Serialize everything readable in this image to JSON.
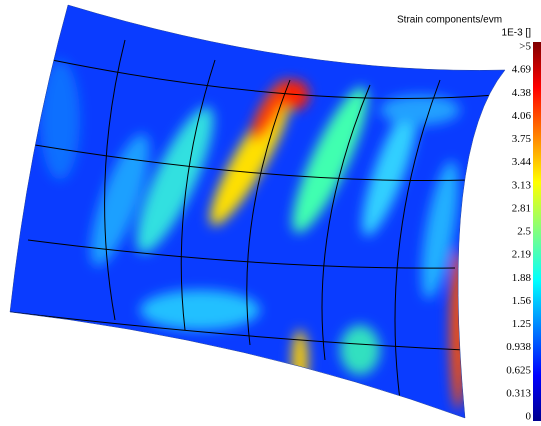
{
  "colorbar": {
    "title": "Strain components/evm",
    "unit": "1E-3 []",
    "labels": [
      ">5",
      "4.69",
      "4.38",
      "4.06",
      "3.75",
      "3.44",
      "3.13",
      "2.81",
      "2.5",
      "2.19",
      "1.88",
      "1.56",
      "1.25",
      "0.938",
      "0.625",
      "0.313",
      "0"
    ]
  }
}
